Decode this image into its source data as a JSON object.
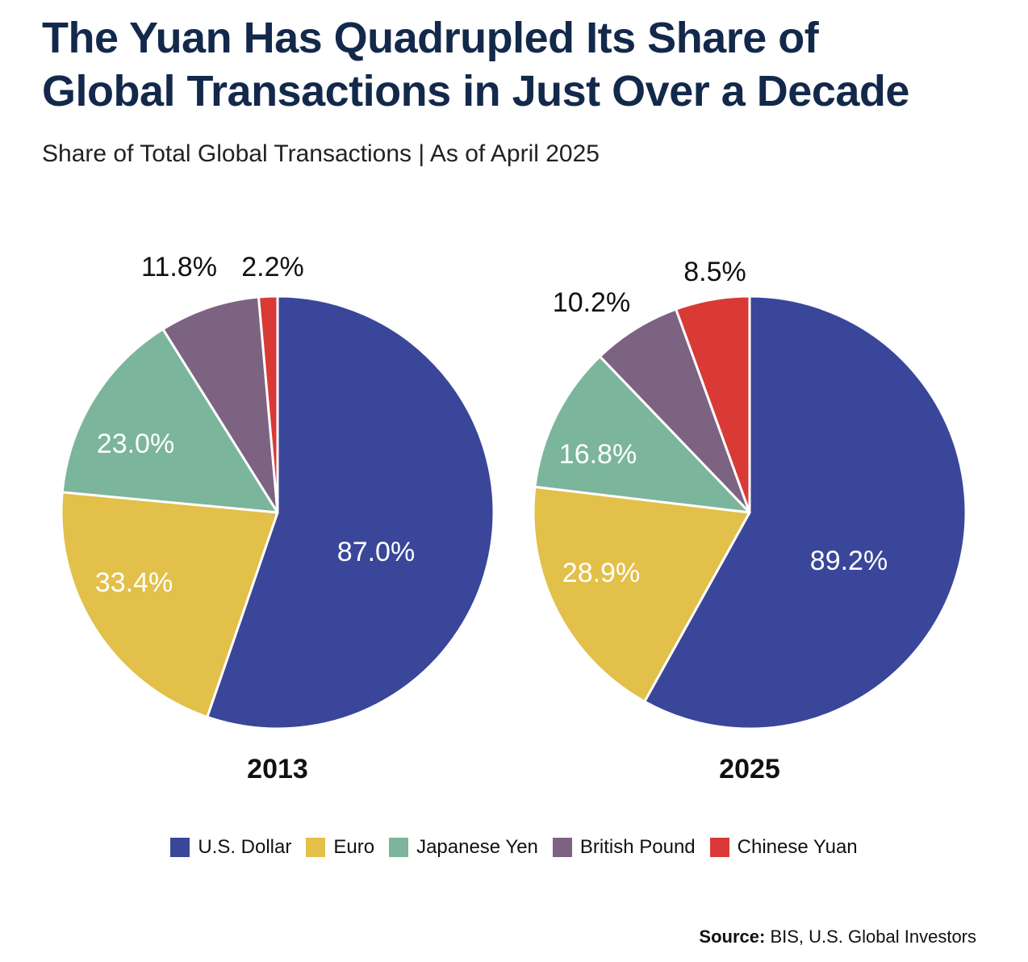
{
  "title_line1": "The Yuan Has Quadrupled Its Share of",
  "title_line2": "Global Transactions in Just Over a Decade",
  "subtitle": "Share of Total Global Transactions | As of April 2025",
  "legend": [
    {
      "label": "U.S. Dollar",
      "color": "#3a4699"
    },
    {
      "label": "Euro",
      "color": "#e2c049"
    },
    {
      "label": "Japanese Yen",
      "color": "#7ab59c"
    },
    {
      "label": "British Pound",
      "color": "#7d6382"
    },
    {
      "label": "Chinese Yuan",
      "color": "#d93a35"
    }
  ],
  "source_label": "Source:",
  "source_text": "BIS, U.S. Global Investors",
  "chart_data": [
    {
      "type": "pie",
      "year_label": "2013",
      "slices": [
        {
          "name": "U.S. Dollar",
          "value": 87.0,
          "label": "87.0%"
        },
        {
          "name": "Euro",
          "value": 33.4,
          "label": "33.4%"
        },
        {
          "name": "Japanese Yen",
          "value": 23.0,
          "label": "23.0%"
        },
        {
          "name": "British Pound",
          "value": 11.8,
          "label": "11.8%"
        },
        {
          "name": "Chinese Yuan",
          "value": 2.2,
          "label": "2.2%"
        }
      ]
    },
    {
      "type": "pie",
      "year_label": "2025",
      "slices": [
        {
          "name": "U.S. Dollar",
          "value": 89.2,
          "label": "89.2%"
        },
        {
          "name": "Euro",
          "value": 28.9,
          "label": "28.9%"
        },
        {
          "name": "Japanese Yen",
          "value": 16.8,
          "label": "16.8%"
        },
        {
          "name": "British Pound",
          "value": 10.2,
          "label": "10.2%"
        },
        {
          "name": "Chinese Yuan",
          "value": 8.5,
          "label": "8.5%"
        }
      ]
    }
  ]
}
